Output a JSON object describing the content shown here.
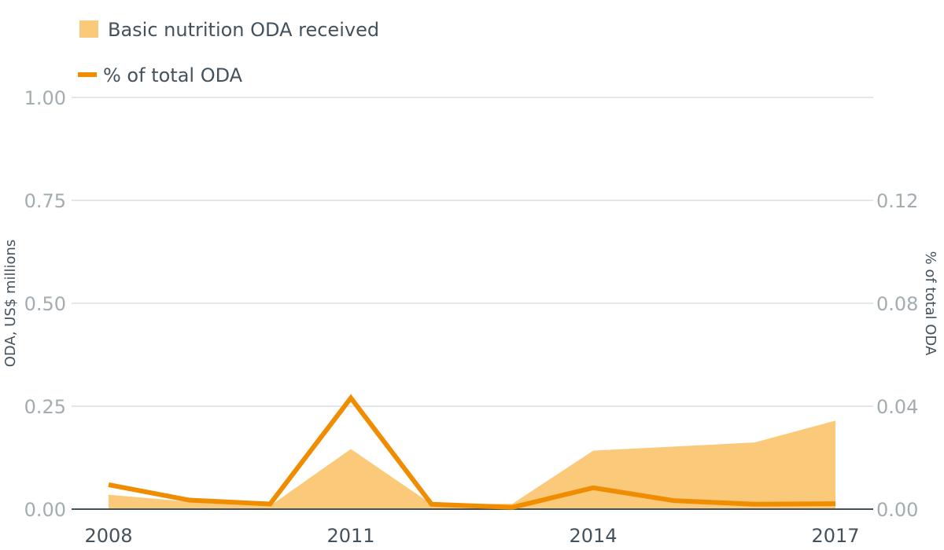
{
  "chart_data": {
    "type": "area+line",
    "x": [
      2008,
      2009,
      2010,
      2011,
      2012,
      2013,
      2014,
      2015,
      2016,
      2017
    ],
    "x_tick_labels": [
      "2008",
      "2011",
      "2014",
      "2017"
    ],
    "x_tick_values": [
      2008,
      2011,
      2014,
      2017
    ],
    "series": [
      {
        "name": "Basic nutrition ODA received",
        "kind": "area",
        "axis": "left",
        "color": "#fbc97a",
        "values": [
          0.035,
          0.018,
          0.008,
          0.146,
          0.012,
          0.013,
          0.142,
          0.152,
          0.162,
          0.215
        ]
      },
      {
        "name": "% of total ODA",
        "kind": "line",
        "axis": "right",
        "color": "#f08c00",
        "values": [
          0.0095,
          0.0035,
          0.002,
          0.0432,
          0.0019,
          0.0007,
          0.0083,
          0.0033,
          0.0019,
          0.0021
        ]
      }
    ],
    "y_left": {
      "label": "ODA, US$ millions",
      "range": [
        0,
        1
      ],
      "ticks": [
        0,
        0.25,
        0.5,
        0.75,
        1.0
      ],
      "tick_labels": [
        "0.00",
        "0.25",
        "0.50",
        "0.75",
        "1.00"
      ]
    },
    "y_right": {
      "label": "% of total ODA",
      "range": [
        0,
        0.16
      ],
      "ticks": [
        0,
        0.04,
        0.08,
        0.12
      ],
      "tick_labels": [
        "0.00",
        "0.04",
        "0.08",
        "0.12"
      ]
    },
    "legend": {
      "area_label": "Basic nutrition ODA received",
      "line_label": "% of total ODA",
      "position": "top-left"
    },
    "grid": true
  }
}
